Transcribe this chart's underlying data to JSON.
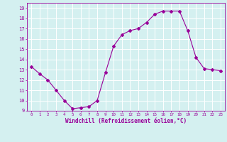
{
  "x": [
    0,
    1,
    2,
    3,
    4,
    5,
    6,
    7,
    8,
    9,
    10,
    11,
    12,
    13,
    14,
    15,
    16,
    17,
    18,
    19,
    20,
    21,
    22,
    23
  ],
  "y": [
    13.3,
    12.6,
    12.0,
    11.0,
    10.0,
    9.2,
    9.3,
    9.4,
    10.0,
    12.7,
    15.3,
    16.4,
    16.8,
    17.0,
    17.6,
    18.4,
    18.7,
    18.7,
    18.7,
    16.8,
    14.2,
    13.1,
    13.0,
    12.9
  ],
  "line_color": "#990099",
  "marker": "D",
  "marker_size": 2,
  "bg_color": "#d4f0f0",
  "grid_color": "#ffffff",
  "xlabel": "Windchill (Refroidissement éolien,°C)",
  "xlabel_color": "#990099",
  "tick_color": "#990099",
  "ylabel_ticks": [
    9,
    10,
    11,
    12,
    13,
    14,
    15,
    16,
    17,
    18,
    19
  ],
  "xlim": [
    -0.5,
    23.5
  ],
  "ylim": [
    9,
    19.5
  ],
  "figsize": [
    3.2,
    2.0
  ],
  "dpi": 100
}
